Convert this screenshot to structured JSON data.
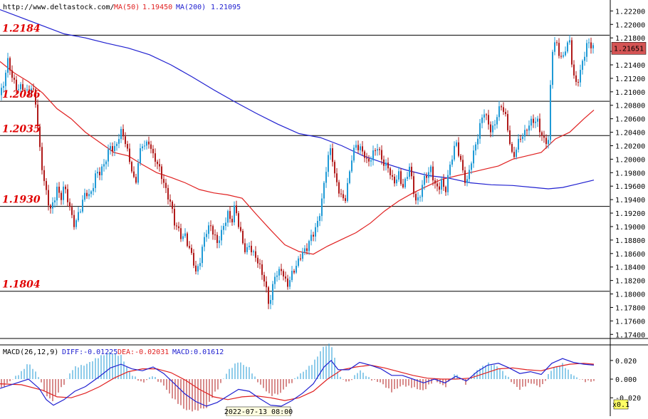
{
  "header": {
    "source": "http://www.deltastock.com/",
    "ma50_label": "MA(50)",
    "ma50_value": "1.19450",
    "ma200_label": "MA(200)",
    "ma200_value": "1.21095"
  },
  "macd_header": {
    "label": "MACD(26,12,9)",
    "diff": "DIFF:-0.01225",
    "dea": "DEA:-0.02031",
    "macd": "MACD:0.01612"
  },
  "current_price": "1.21651",
  "time_label": "2022-07-13 08:00",
  "zoom_label": "x0.1",
  "colors": {
    "bull": "#1f9ad6",
    "bear": "#b01a1a",
    "ma50": "#e02020",
    "ma200": "#2020d0",
    "level_text": "#e00000",
    "price_box": "#d45454"
  },
  "chart_data": [
    {
      "type": "candlestick",
      "title": "",
      "y_ticks": [
        "1.22200",
        "1.22000",
        "1.21800",
        "1.21600",
        "1.21400",
        "1.21200",
        "1.21000",
        "1.20800",
        "1.20600",
        "1.20400",
        "1.20200",
        "1.20000",
        "1.19800",
        "1.19600",
        "1.19400",
        "1.19200",
        "1.19000",
        "1.18800",
        "1.18600",
        "1.18400",
        "1.18200",
        "1.18000",
        "1.17800",
        "1.17600",
        "1.17400"
      ],
      "ylim": [
        1.1735,
        1.2232
      ],
      "levels": [
        {
          "label": "1.2184",
          "value": 1.2184
        },
        {
          "label": "1.2086",
          "value": 1.2086
        },
        {
          "label": "1.2035",
          "value": 1.2035
        },
        {
          "label": "1.1930",
          "value": 1.193
        },
        {
          "label": "1.1804",
          "value": 1.1804
        }
      ],
      "close_path": [
        [
          0,
          1.2095
        ],
        [
          6,
          1.2115
        ],
        [
          10,
          1.215
        ],
        [
          16,
          1.212
        ],
        [
          22,
          1.2105
        ],
        [
          28,
          1.211
        ],
        [
          34,
          1.2105
        ],
        [
          40,
          1.21
        ],
        [
          45,
          1.211
        ],
        [
          50,
          1.208
        ],
        [
          55,
          1.202
        ],
        [
          60,
          1.198
        ],
        [
          65,
          1.195
        ],
        [
          70,
          1.1925
        ],
        [
          75,
          1.194
        ],
        [
          80,
          1.196
        ],
        [
          85,
          1.1935
        ],
        [
          90,
          1.196
        ],
        [
          95,
          1.194
        ],
        [
          100,
          1.1915
        ],
        [
          105,
          1.19
        ],
        [
          110,
          1.1925
        ],
        [
          115,
          1.1935
        ],
        [
          120,
          1.195
        ],
        [
          125,
          1.1945
        ],
        [
          130,
          1.1955
        ],
        [
          135,
          1.1975
        ],
        [
          140,
          1.198
        ],
        [
          145,
          1.1995
        ],
        [
          150,
          1.2005
        ],
        [
          155,
          1.202
        ],
        [
          160,
          1.2015
        ],
        [
          165,
          1.2025
        ],
        [
          170,
          1.2035
        ],
        [
          175,
          1.203
        ],
        [
          180,
          1.201
        ],
        [
          185,
          1.1985
        ],
        [
          190,
          1.196
        ],
        [
          195,
          1.201
        ],
        [
          200,
          1.202
        ],
        [
          205,
          1.2015
        ],
        [
          210,
          1.2025
        ],
        [
          215,
          1.2005
        ],
        [
          220,
          1.1995
        ],
        [
          225,
          1.1985
        ],
        [
          230,
          1.197
        ],
        [
          235,
          1.1945
        ],
        [
          240,
          1.193
        ],
        [
          245,
          1.1905
        ],
        [
          250,
          1.1895
        ],
        [
          255,
          1.188
        ],
        [
          260,
          1.189
        ],
        [
          265,
          1.1875
        ],
        [
          270,
          1.1855
        ],
        [
          275,
          1.183
        ],
        [
          280,
          1.1845
        ],
        [
          285,
          1.187
        ],
        [
          290,
          1.189
        ],
        [
          295,
          1.1905
        ],
        [
          300,
          1.1895
        ],
        [
          305,
          1.1875
        ],
        [
          310,
          1.189
        ],
        [
          315,
          1.1905
        ],
        [
          320,
          1.1915
        ],
        [
          325,
          1.19
        ],
        [
          330,
          1.1935
        ],
        [
          335,
          1.1905
        ],
        [
          340,
          1.188
        ],
        [
          345,
          1.1865
        ],
        [
          350,
          1.1875
        ],
        [
          355,
          1.1855
        ],
        [
          360,
          1.185
        ],
        [
          365,
          1.184
        ],
        [
          370,
          1.1825
        ],
        [
          375,
          1.18
        ],
        [
          378,
          1.1785
        ],
        [
          382,
          1.181
        ],
        [
          386,
          1.183
        ],
        [
          390,
          1.1825
        ],
        [
          395,
          1.1835
        ],
        [
          400,
          1.182
        ],
        [
          405,
          1.181
        ],
        [
          410,
          1.183
        ],
        [
          415,
          1.1845
        ],
        [
          420,
          1.1855
        ],
        [
          425,
          1.186
        ],
        [
          430,
          1.1865
        ],
        [
          435,
          1.188
        ],
        [
          440,
          1.1885
        ],
        [
          445,
          1.19
        ],
        [
          450,
          1.193
        ],
        [
          455,
          1.1965
        ],
        [
          460,
          1.2
        ],
        [
          465,
          1.202
        ],
        [
          470,
          1.1975
        ],
        [
          475,
          1.195
        ],
        [
          480,
          1.194
        ],
        [
          485,
          1.1945
        ],
        [
          490,
          1.1975
        ],
        [
          495,
          1.201
        ],
        [
          500,
          1.2025
        ],
        [
          505,
          1.2015
        ],
        [
          510,
          1.2005
        ],
        [
          515,
          1.1995
        ],
        [
          520,
          1.2
        ],
        [
          525,
          1.201
        ],
        [
          530,
          1.202
        ],
        [
          535,
          1.201
        ],
        [
          540,
          1.199
        ],
        [
          545,
          1.1985
        ],
        [
          550,
          1.197
        ],
        [
          555,
          1.1965
        ],
        [
          560,
          1.1975
        ],
        [
          565,
          1.196
        ],
        [
          570,
          1.1975
        ],
        [
          575,
          1.199
        ],
        [
          580,
          1.1955
        ],
        [
          585,
          1.1935
        ],
        [
          590,
          1.1945
        ],
        [
          595,
          1.1965
        ],
        [
          600,
          1.198
        ],
        [
          605,
          1.199
        ],
        [
          610,
          1.1965
        ],
        [
          615,
          1.1955
        ],
        [
          620,
          1.197
        ],
        [
          625,
          1.1945
        ],
        [
          630,
          1.1975
        ],
        [
          635,
          1.2005
        ],
        [
          640,
          1.203
        ],
        [
          645,
          1.2005
        ],
        [
          650,
          1.1985
        ],
        [
          655,
          1.1965
        ],
        [
          660,
          1.1985
        ],
        [
          665,
          1.2005
        ],
        [
          670,
          1.203
        ],
        [
          675,
          1.2055
        ],
        [
          680,
          1.207
        ],
        [
          685,
          1.206
        ],
        [
          690,
          1.2045
        ],
        [
          695,
          1.205
        ],
        [
          700,
          1.207
        ],
        [
          705,
          1.208
        ],
        [
          710,
          1.206
        ],
        [
          715,
          1.203
        ],
        [
          720,
          1.2005
        ],
        [
          725,
          1.202
        ],
        [
          730,
          1.203
        ],
        [
          735,
          1.2035
        ],
        [
          740,
          1.2045
        ],
        [
          745,
          1.205
        ],
        [
          750,
          1.2055
        ],
        [
          755,
          1.206
        ],
        [
          760,
          1.204
        ],
        [
          765,
          1.2025
        ],
        [
          770,
          1.203
        ],
        [
          775,
          1.216
        ],
        [
          780,
          1.217
        ],
        [
          785,
          1.2155
        ],
        [
          790,
          1.215
        ],
        [
          795,
          1.217
        ],
        [
          800,
          1.2175
        ],
        [
          805,
          1.213
        ],
        [
          810,
          1.211
        ],
        [
          815,
          1.2125
        ],
        [
          820,
          1.215
        ],
        [
          825,
          1.2175
        ],
        [
          830,
          1.2168
        ],
        [
          834,
          1.2165
        ]
      ],
      "ma200_path": [
        [
          0,
          1.2222
        ],
        [
          30,
          1.221
        ],
        [
          60,
          1.2198
        ],
        [
          90,
          1.2186
        ],
        [
          120,
          1.218
        ],
        [
          150,
          1.2172
        ],
        [
          180,
          1.2165
        ],
        [
          210,
          1.2155
        ],
        [
          240,
          1.214
        ],
        [
          270,
          1.2122
        ],
        [
          300,
          1.2103
        ],
        [
          330,
          1.2085
        ],
        [
          360,
          1.2068
        ],
        [
          390,
          1.2052
        ],
        [
          420,
          1.2038
        ],
        [
          450,
          1.2032
        ],
        [
          480,
          1.202
        ],
        [
          510,
          1.2005
        ],
        [
          540,
          1.1994
        ],
        [
          570,
          1.1984
        ],
        [
          600,
          1.1976
        ],
        [
          630,
          1.1972
        ],
        [
          660,
          1.1965
        ],
        [
          690,
          1.1962
        ],
        [
          720,
          1.1961
        ],
        [
          750,
          1.1958
        ],
        [
          770,
          1.1956
        ],
        [
          790,
          1.1958
        ],
        [
          810,
          1.1963
        ],
        [
          834,
          1.1969
        ]
      ],
      "ma50_path": [
        [
          0,
          1.2145
        ],
        [
          20,
          1.2128
        ],
        [
          40,
          1.2115
        ],
        [
          60,
          1.2098
        ],
        [
          80,
          1.2075
        ],
        [
          100,
          1.206
        ],
        [
          120,
          1.204
        ],
        [
          140,
          1.2025
        ],
        [
          160,
          1.201
        ],
        [
          180,
          1.2005
        ],
        [
          200,
          1.1992
        ],
        [
          220,
          1.198
        ],
        [
          240,
          1.1973
        ],
        [
          260,
          1.1965
        ],
        [
          280,
          1.1955
        ],
        [
          300,
          1.195
        ],
        [
          320,
          1.1947
        ],
        [
          340,
          1.1942
        ],
        [
          360,
          1.1918
        ],
        [
          380,
          1.1895
        ],
        [
          400,
          1.1873
        ],
        [
          420,
          1.1863
        ],
        [
          440,
          1.1859
        ],
        [
          460,
          1.1871
        ],
        [
          480,
          1.1881
        ],
        [
          500,
          1.1891
        ],
        [
          520,
          1.1905
        ],
        [
          540,
          1.1923
        ],
        [
          560,
          1.1938
        ],
        [
          580,
          1.195
        ],
        [
          600,
          1.196
        ],
        [
          620,
          1.197
        ],
        [
          640,
          1.1975
        ],
        [
          660,
          1.198
        ],
        [
          680,
          1.1985
        ],
        [
          700,
          1.199
        ],
        [
          720,
          1.2
        ],
        [
          740,
          1.2005
        ],
        [
          760,
          1.201
        ],
        [
          780,
          1.203
        ],
        [
          800,
          1.204
        ],
        [
          820,
          1.206
        ],
        [
          834,
          1.2073
        ]
      ]
    },
    {
      "type": "macd",
      "y_ticks": [
        "0.020",
        "0.000",
        "-0.020"
      ],
      "ylim": [
        -0.029,
        0.026
      ],
      "diff_path": [
        [
          0,
          -0.01
        ],
        [
          20,
          -0.005
        ],
        [
          40,
          0.0
        ],
        [
          55,
          -0.01
        ],
        [
          65,
          -0.022
        ],
        [
          75,
          -0.028
        ],
        [
          90,
          -0.022
        ],
        [
          105,
          -0.013
        ],
        [
          120,
          -0.008
        ],
        [
          140,
          0.003
        ],
        [
          155,
          0.012
        ],
        [
          170,
          0.016
        ],
        [
          185,
          0.011
        ],
        [
          200,
          0.009
        ],
        [
          215,
          0.013
        ],
        [
          230,
          0.006
        ],
        [
          245,
          -0.005
        ],
        [
          260,
          -0.016
        ],
        [
          275,
          -0.024
        ],
        [
          290,
          -0.029
        ],
        [
          305,
          -0.025
        ],
        [
          320,
          -0.018
        ],
        [
          335,
          -0.011
        ],
        [
          350,
          -0.013
        ],
        [
          365,
          -0.021
        ],
        [
          380,
          -0.028
        ],
        [
          395,
          -0.029
        ],
        [
          410,
          -0.023
        ],
        [
          425,
          -0.015
        ],
        [
          440,
          -0.005
        ],
        [
          455,
          0.013
        ],
        [
          465,
          0.02
        ],
        [
          475,
          0.01
        ],
        [
          490,
          0.01
        ],
        [
          505,
          0.018
        ],
        [
          520,
          0.015
        ],
        [
          535,
          0.011
        ],
        [
          550,
          0.004
        ],
        [
          565,
          0.004
        ],
        [
          580,
          0.0
        ],
        [
          595,
          -0.004
        ],
        [
          610,
          0.0
        ],
        [
          625,
          -0.004
        ],
        [
          640,
          0.003
        ],
        [
          655,
          -0.002
        ],
        [
          670,
          0.008
        ],
        [
          685,
          0.015
        ],
        [
          700,
          0.017
        ],
        [
          715,
          0.012
        ],
        [
          730,
          0.006
        ],
        [
          745,
          0.008
        ],
        [
          760,
          0.005
        ],
        [
          775,
          0.017
        ],
        [
          790,
          0.022
        ],
        [
          805,
          0.018
        ],
        [
          820,
          0.016
        ],
        [
          834,
          0.015
        ]
      ],
      "dea_path": [
        [
          0,
          -0.005
        ],
        [
          30,
          -0.006
        ],
        [
          60,
          -0.012
        ],
        [
          80,
          -0.019
        ],
        [
          100,
          -0.02
        ],
        [
          120,
          -0.015
        ],
        [
          140,
          -0.008
        ],
        [
          160,
          0.001
        ],
        [
          180,
          0.008
        ],
        [
          200,
          0.011
        ],
        [
          220,
          0.011
        ],
        [
          240,
          0.007
        ],
        [
          260,
          -0.001
        ],
        [
          280,
          -0.011
        ],
        [
          300,
          -0.019
        ],
        [
          320,
          -0.022
        ],
        [
          340,
          -0.019
        ],
        [
          360,
          -0.018
        ],
        [
          380,
          -0.02
        ],
        [
          400,
          -0.023
        ],
        [
          420,
          -0.02
        ],
        [
          440,
          -0.013
        ],
        [
          460,
          0.0
        ],
        [
          480,
          0.01
        ],
        [
          500,
          0.013
        ],
        [
          520,
          0.015
        ],
        [
          540,
          0.012
        ],
        [
          560,
          0.008
        ],
        [
          580,
          0.004
        ],
        [
          600,
          0.001
        ],
        [
          620,
          0.0
        ],
        [
          640,
          0.0
        ],
        [
          660,
          0.001
        ],
        [
          680,
          0.006
        ],
        [
          700,
          0.011
        ],
        [
          720,
          0.012
        ],
        [
          740,
          0.01
        ],
        [
          760,
          0.009
        ],
        [
          780,
          0.013
        ],
        [
          800,
          0.016
        ],
        [
          820,
          0.017
        ],
        [
          834,
          0.016
        ]
      ]
    }
  ]
}
